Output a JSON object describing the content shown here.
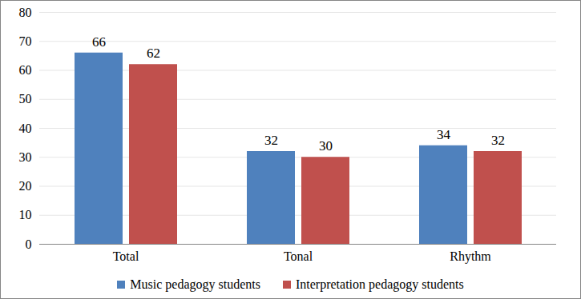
{
  "chart_data": {
    "type": "bar",
    "categories": [
      "Total",
      "Tonal",
      "Rhythm"
    ],
    "series": [
      {
        "name": "Music pedagogy students",
        "color": "#4f81bd",
        "values": [
          66,
          32,
          34
        ]
      },
      {
        "name": "Interpretation pedagogy students",
        "color": "#c0504d",
        "values": [
          62,
          30,
          32
        ]
      }
    ],
    "ylim": [
      0,
      80
    ],
    "yticks": [
      0,
      10,
      20,
      30,
      40,
      50,
      60,
      70,
      80
    ],
    "grid": true,
    "data_labels": true,
    "legend": "bottom"
  }
}
